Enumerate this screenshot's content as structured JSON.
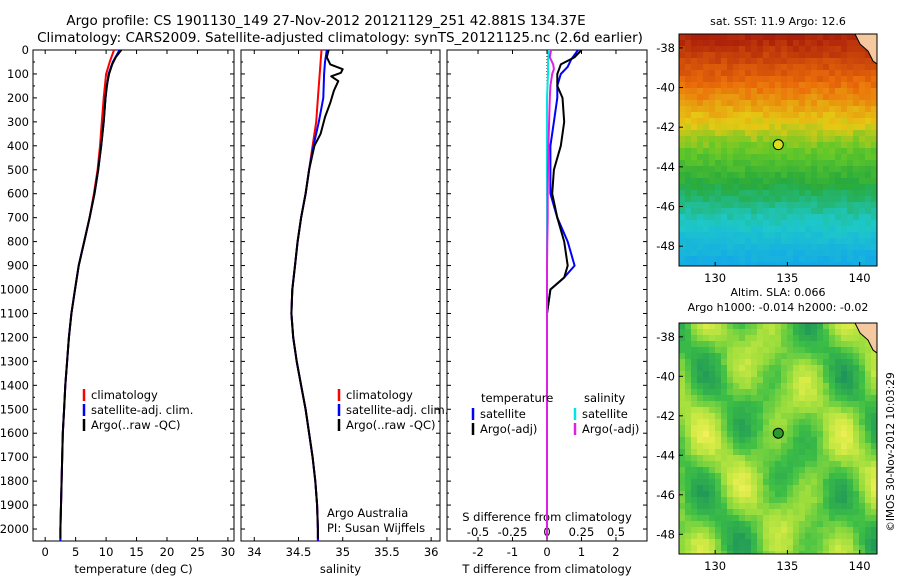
{
  "header": {
    "line1": "Argo profile: CS 1901130_149 27-Nov-2012 20121129_251 42.881S 134.37E",
    "line2": "Climatology: CARS2009. Satellite-adjusted climatology: synTS_20121125.nc (2.6d earlier)"
  },
  "side_stamp": "©IMOS 30-Nov-2012 10:03:29",
  "colors": {
    "climatology": "#ff0000",
    "satellite": "#0000ff",
    "argo": "#000000",
    "satellite_s": "#00e5e5",
    "argo_s": "#e020e0"
  },
  "chart_data": [
    {
      "type": "line",
      "panel": "temperature",
      "xlabel": "temperature (deg C)",
      "ylabel": "",
      "xlim": [
        -2,
        31
      ],
      "ylim": [
        2050,
        0
      ],
      "xticks": [
        "0",
        "5",
        "10",
        "15",
        "20",
        "25",
        "30"
      ],
      "yticks": [
        "0",
        "100",
        "200",
        "300",
        "400",
        "500",
        "600",
        "700",
        "800",
        "900",
        "1000",
        "1100",
        "1200",
        "1300",
        "1400",
        "1500",
        "1600",
        "1700",
        "1800",
        "1900",
        "2000"
      ],
      "legend": [
        "climatology",
        "satellite-adj. clim.",
        "Argo(..raw -QC)"
      ],
      "series": [
        {
          "name": "climatology",
          "color": "#ff0000",
          "depth": [
            0,
            50,
            100,
            200,
            300,
            400,
            500,
            600,
            700,
            800,
            900,
            1000,
            1100,
            1200,
            1300,
            1400,
            1500,
            1600,
            1700,
            1800,
            1900,
            2000,
            2050
          ],
          "values": [
            11.3,
            10.6,
            10.0,
            9.6,
            9.3,
            9.0,
            8.6,
            8.0,
            7.3,
            6.4,
            5.5,
            4.9,
            4.3,
            3.9,
            3.6,
            3.3,
            3.1,
            2.9,
            2.8,
            2.7,
            2.6,
            2.5,
            2.5
          ]
        },
        {
          "name": "satellite-adj. clim.",
          "color": "#0000ff",
          "depth": [
            0,
            50,
            100,
            200,
            300,
            400,
            500,
            600,
            700,
            800,
            900,
            1000,
            1100,
            1200,
            1300,
            1400,
            1500,
            1600,
            1700,
            1800,
            1900,
            2000,
            2050
          ],
          "values": [
            12.2,
            11.1,
            10.4,
            9.9,
            9.6,
            9.2,
            8.7,
            8.1,
            7.3,
            6.4,
            5.5,
            4.9,
            4.3,
            3.9,
            3.6,
            3.3,
            3.1,
            2.9,
            2.8,
            2.7,
            2.6,
            2.5,
            2.5
          ]
        },
        {
          "name": "Argo(..raw -QC)",
          "color": "#000000",
          "depth": [
            0,
            30,
            60,
            100,
            150,
            200,
            300,
            400,
            500,
            600,
            700,
            800,
            900,
            1000,
            1100,
            1200,
            1300,
            1400,
            1500,
            1600,
            1700,
            1800,
            1900,
            2000,
            2040
          ],
          "values": [
            12.5,
            11.6,
            11.0,
            10.5,
            10.1,
            9.9,
            9.6,
            9.2,
            8.7,
            8.1,
            7.3,
            6.4,
            5.5,
            4.9,
            4.3,
            3.9,
            3.6,
            3.3,
            3.1,
            2.9,
            2.8,
            2.7,
            2.6,
            2.5,
            2.5
          ]
        }
      ]
    },
    {
      "type": "line",
      "panel": "salinity",
      "xlabel": "salinity",
      "xlim": [
        33.85,
        36.1
      ],
      "ylim": [
        2050,
        0
      ],
      "xticks": [
        "34",
        "34.5",
        "35",
        "35.5",
        "36"
      ],
      "legend": [
        "climatology",
        "satellite-adj. clim.",
        "Argo(..raw -QC)"
      ],
      "annotation": [
        "Argo Australia",
        "PI: Susan Wijffels"
      ],
      "series": [
        {
          "name": "climatology",
          "color": "#ff0000",
          "depth": [
            0,
            50,
            100,
            200,
            300,
            400,
            500,
            600,
            700,
            800,
            900,
            1000,
            1100,
            1200,
            1300,
            1400,
            1500,
            1600,
            1700,
            1800,
            1900,
            2000,
            2050
          ],
          "values": [
            34.76,
            34.75,
            34.74,
            34.72,
            34.7,
            34.66,
            34.62,
            34.58,
            34.53,
            34.49,
            34.46,
            34.43,
            34.42,
            34.44,
            34.48,
            34.53,
            34.58,
            34.62,
            34.66,
            34.69,
            34.71,
            34.72,
            34.72
          ]
        },
        {
          "name": "satellite-adj. clim.",
          "color": "#0000ff",
          "depth": [
            0,
            50,
            100,
            200,
            300,
            400,
            500,
            600,
            700,
            800,
            900,
            1000,
            1100,
            1200,
            1300,
            1400,
            1500,
            1600,
            1700,
            1800,
            1900,
            2000,
            2050
          ],
          "values": [
            34.82,
            34.8,
            34.79,
            34.78,
            34.73,
            34.67,
            34.62,
            34.58,
            34.53,
            34.49,
            34.46,
            34.43,
            34.42,
            34.44,
            34.48,
            34.53,
            34.58,
            34.62,
            34.66,
            34.69,
            34.71,
            34.72,
            34.72
          ]
        },
        {
          "name": "Argo(..raw -QC)",
          "color": "#000000",
          "depth": [
            0,
            30,
            60,
            80,
            95,
            110,
            130,
            170,
            220,
            280,
            350,
            400,
            500,
            600,
            700,
            800,
            900,
            1000,
            1100,
            1200,
            1300,
            1400,
            1500,
            1600,
            1700,
            1800,
            1900,
            2000,
            2040
          ],
          "values": [
            34.84,
            34.82,
            34.86,
            35.0,
            34.98,
            34.87,
            34.95,
            34.9,
            34.86,
            34.8,
            34.75,
            34.68,
            34.62,
            34.58,
            34.53,
            34.49,
            34.46,
            34.43,
            34.42,
            34.44,
            34.48,
            34.53,
            34.58,
            34.62,
            34.66,
            34.69,
            34.71,
            34.72,
            34.72
          ]
        }
      ]
    },
    {
      "type": "line",
      "panel": "difference",
      "xlabel": "T difference from climatology",
      "xlabel_top": "S difference from climatology",
      "xlim": [
        -2.9,
        2.9
      ],
      "ylim": [
        2050,
        0
      ],
      "xticks": [
        "-2",
        "-1",
        "0",
        "1",
        "2"
      ],
      "xticks_s": [
        "-0.5",
        "-0.25",
        "0",
        "0.25",
        "0.5"
      ],
      "legend": {
        "temperature_header": "temperature",
        "salinity_header": "salinity",
        "items": [
          "satellite",
          "Argo(-adj)",
          "satellite",
          "Argo(-adj)"
        ]
      },
      "series": [
        {
          "name": "satellite",
          "quantity": "temperature",
          "color": "#0000ff",
          "depth": [
            0,
            40,
            70,
            100,
            150,
            200,
            300,
            400,
            500,
            600,
            700,
            800,
            900,
            950,
            1000,
            1100,
            1200,
            1400,
            1600,
            1800,
            2000
          ],
          "values": [
            0.9,
            0.7,
            0.6,
            0.4,
            0.3,
            0.3,
            0.2,
            0.1,
            0.1,
            0.1,
            0.3,
            0.6,
            0.8,
            0.5,
            0.1,
            0.0,
            0.0,
            0.0,
            0.0,
            0.0,
            0.0
          ]
        },
        {
          "name": "Argo(-adj)",
          "quantity": "temperature",
          "color": "#000000",
          "depth": [
            0,
            30,
            60,
            80,
            100,
            150,
            200,
            300,
            350,
            400,
            500,
            600,
            700,
            800,
            900,
            950,
            1000,
            1100,
            1200,
            1400,
            1600,
            1800,
            2000,
            2040
          ],
          "values": [
            1.0,
            0.8,
            0.4,
            0.35,
            0.3,
            0.3,
            0.45,
            0.5,
            0.45,
            0.4,
            0.2,
            0.15,
            0.3,
            0.5,
            0.6,
            0.5,
            0.1,
            0.0,
            0.0,
            0.0,
            0.0,
            0.0,
            0.0,
            0.0
          ]
        },
        {
          "name": "satellite",
          "quantity": "salinity",
          "color": "#00e5e5",
          "depth": [
            0,
            50,
            100,
            200,
            300,
            400,
            500,
            600,
            700,
            800,
            900,
            1000,
            1200,
            1400,
            1600,
            1800,
            2000
          ],
          "values": [
            0.05,
            0.03,
            0.03,
            0.0,
            0.0,
            0.0,
            0.0,
            0.0,
            0.0,
            0.0,
            0.0,
            0.0,
            0.0,
            0.0,
            0.0,
            0.0,
            0.0
          ]
        },
        {
          "name": "Argo(-adj)",
          "quantity": "salinity",
          "color": "#e020e0",
          "depth": [
            0,
            30,
            60,
            80,
            100,
            150,
            200,
            300,
            400,
            500,
            600,
            700,
            800,
            900,
            1000,
            1200,
            1400,
            1600,
            1800,
            2000,
            2040
          ],
          "values": [
            0.12,
            0.08,
            0.18,
            0.2,
            0.15,
            0.1,
            0.08,
            0.06,
            0.04,
            0.03,
            0.02,
            0.02,
            0.01,
            0.0,
            0.0,
            0.0,
            0.0,
            0.0,
            0.0,
            0.0,
            0.0
          ]
        }
      ]
    },
    {
      "type": "heatmap",
      "panel": "sst_map",
      "title": "sat. SST: 11.9 Argo: 12.6",
      "xlim": [
        127.5,
        141.2
      ],
      "ylim": [
        -49.0,
        -37.3
      ],
      "xticks": [
        "130",
        "135",
        "140"
      ],
      "yticks": [
        "-38",
        "-40",
        "-42",
        "-44",
        "-46",
        "-48"
      ],
      "marker": {
        "lon": 134.37,
        "lat": -42.881,
        "color": "#d8e01a"
      }
    },
    {
      "type": "heatmap",
      "panel": "sla_map",
      "title": "Altim. SLA: 0.066",
      "subtitle": "Argo h1000: -0.014 h2000: -0.02",
      "xlim": [
        127.5,
        141.2
      ],
      "ylim": [
        -49.0,
        -37.3
      ],
      "xticks": [
        "130",
        "135",
        "140"
      ],
      "yticks": [
        "-38",
        "-40",
        "-42",
        "-44",
        "-46",
        "-48"
      ],
      "marker": {
        "lon": 134.37,
        "lat": -42.881,
        "color": "#2a9a2a"
      }
    }
  ]
}
